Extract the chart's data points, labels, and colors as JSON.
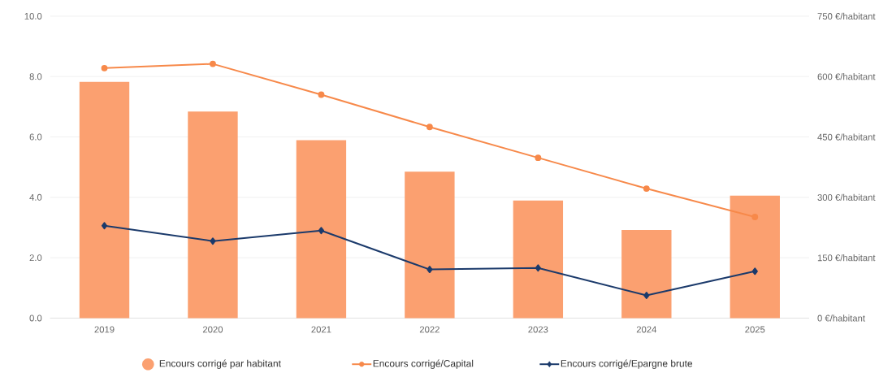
{
  "chart_data": {
    "type": "bar",
    "categories": [
      "2019",
      "2020",
      "2021",
      "2022",
      "2023",
      "2024",
      "2025"
    ],
    "series": [
      {
        "name": "Encours corrigé par habitant",
        "axis": "y2",
        "color": "#fba070",
        "values": [
          587,
          513,
          442,
          364,
          292,
          219,
          304
        ]
      },
      {
        "name": "Encours corrigé/Capital",
        "type": "line",
        "marker": "circle",
        "color": "#f7894a",
        "values": [
          8.28,
          8.42,
          7.4,
          6.33,
          5.31,
          4.29,
          3.35
        ]
      },
      {
        "name": "Encours corrigé/Epargne brute",
        "type": "line",
        "marker": "diamond",
        "color": "#1b3a6b",
        "values": [
          3.06,
          2.55,
          2.9,
          1.61,
          1.66,
          0.75,
          1.55
        ]
      }
    ],
    "ylim": [
      0,
      10
    ],
    "yticks": [
      {
        "value": 0,
        "label": "0.0"
      },
      {
        "value": 2,
        "label": "2.0"
      },
      {
        "value": 4,
        "label": "4.0"
      },
      {
        "value": 6,
        "label": "6.0"
      },
      {
        "value": 8,
        "label": "8.0"
      },
      {
        "value": 10,
        "label": "10.0"
      }
    ],
    "y2lim": [
      0,
      750
    ],
    "y2ticks": [
      {
        "value": 0,
        "label": "0 €/habitant"
      },
      {
        "value": 150,
        "label": "150 €/habitant"
      },
      {
        "value": 300,
        "label": "300 €/habitant"
      },
      {
        "value": 450,
        "label": "450 €/habitant"
      },
      {
        "value": 600,
        "label": "600 €/habitant"
      },
      {
        "value": 750,
        "label": "750 €/habitant"
      }
    ],
    "grid": "y",
    "legend": "bottom"
  }
}
